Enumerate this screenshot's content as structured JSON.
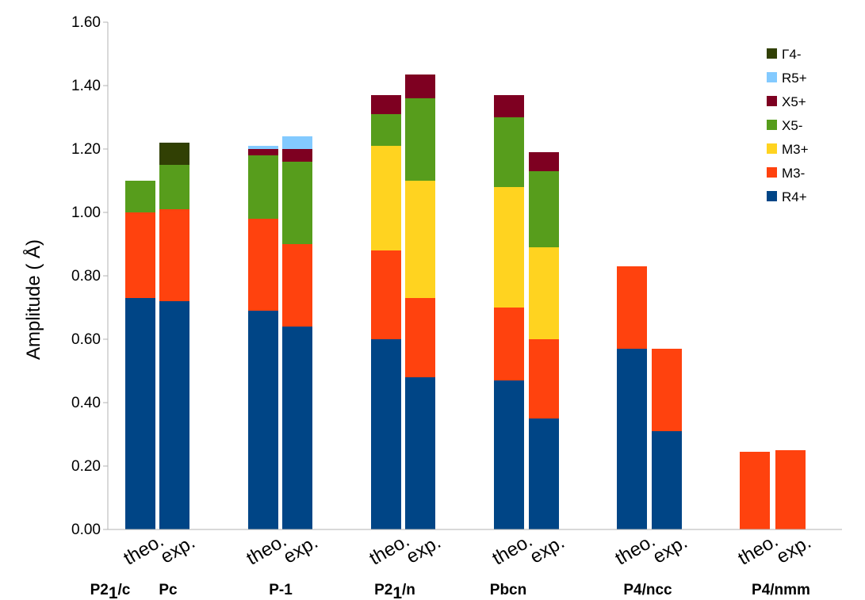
{
  "chart_data": {
    "type": "bar",
    "stacked": true,
    "ylabel": "Amplitude ( Å)",
    "ylim": [
      0,
      1.6
    ],
    "ytick_step": 0.2,
    "ytick_labels": [
      "0.00",
      "0.20",
      "0.40",
      "0.60",
      "0.80",
      "1.00",
      "1.20",
      "1.40",
      "1.60"
    ],
    "grid": false,
    "legend_position": "top-right",
    "categories": [
      "theo.",
      "exp.",
      "theo.",
      "exp.",
      "theo.",
      "exp.",
      "theo.",
      "exp.",
      "theo.",
      "exp.",
      "theo.",
      "exp."
    ],
    "groups": [
      {
        "label": "P2",
        "sub": "1",
        "suffix": "/c"
      },
      {
        "label": "Pc",
        "sub": "",
        "suffix": ""
      },
      {
        "label": "P-1",
        "sub": "",
        "suffix": ""
      },
      {
        "label": "P2",
        "sub": "1",
        "suffix": "/n"
      },
      {
        "label": "Pbcn",
        "sub": "",
        "suffix": ""
      },
      {
        "label": "P4/ncc",
        "sub": "",
        "suffix": ""
      },
      {
        "label": "P4/nmm",
        "sub": "",
        "suffix": ""
      }
    ],
    "series": [
      {
        "name": "R4+",
        "color": "#004586",
        "values": [
          0.73,
          0.72,
          0.69,
          0.64,
          0.6,
          0.48,
          0.47,
          0.35,
          0.57,
          0.31,
          0,
          0
        ]
      },
      {
        "name": "M3-",
        "color": "#ff420e",
        "values": [
          0.27,
          0.29,
          0.29,
          0.26,
          0.28,
          0.25,
          0.23,
          0.25,
          0.26,
          0.26,
          0.245,
          0.25
        ]
      },
      {
        "name": "M3+",
        "color": "#ffd320",
        "values": [
          0,
          0,
          0,
          0,
          0.33,
          0.37,
          0.38,
          0.29,
          0,
          0,
          0,
          0
        ]
      },
      {
        "name": "X5-",
        "color": "#579d1c",
        "values": [
          0.1,
          0.14,
          0.2,
          0.26,
          0.1,
          0.26,
          0.22,
          0.24,
          0,
          0,
          0,
          0
        ]
      },
      {
        "name": "X5+",
        "color": "#7e0021",
        "values": [
          0,
          0,
          0.02,
          0.04,
          0.06,
          0.075,
          0.07,
          0.06,
          0,
          0,
          0,
          0
        ]
      },
      {
        "name": "R5+",
        "color": "#83caff",
        "values": [
          0,
          0,
          0.01,
          0.04,
          0,
          0,
          0,
          0,
          0,
          0,
          0,
          0
        ]
      },
      {
        "name": "Γ4-",
        "color": "#314004",
        "values": [
          0,
          0.07,
          0,
          0,
          0,
          0,
          0,
          0,
          0,
          0,
          0,
          0
        ]
      }
    ]
  }
}
